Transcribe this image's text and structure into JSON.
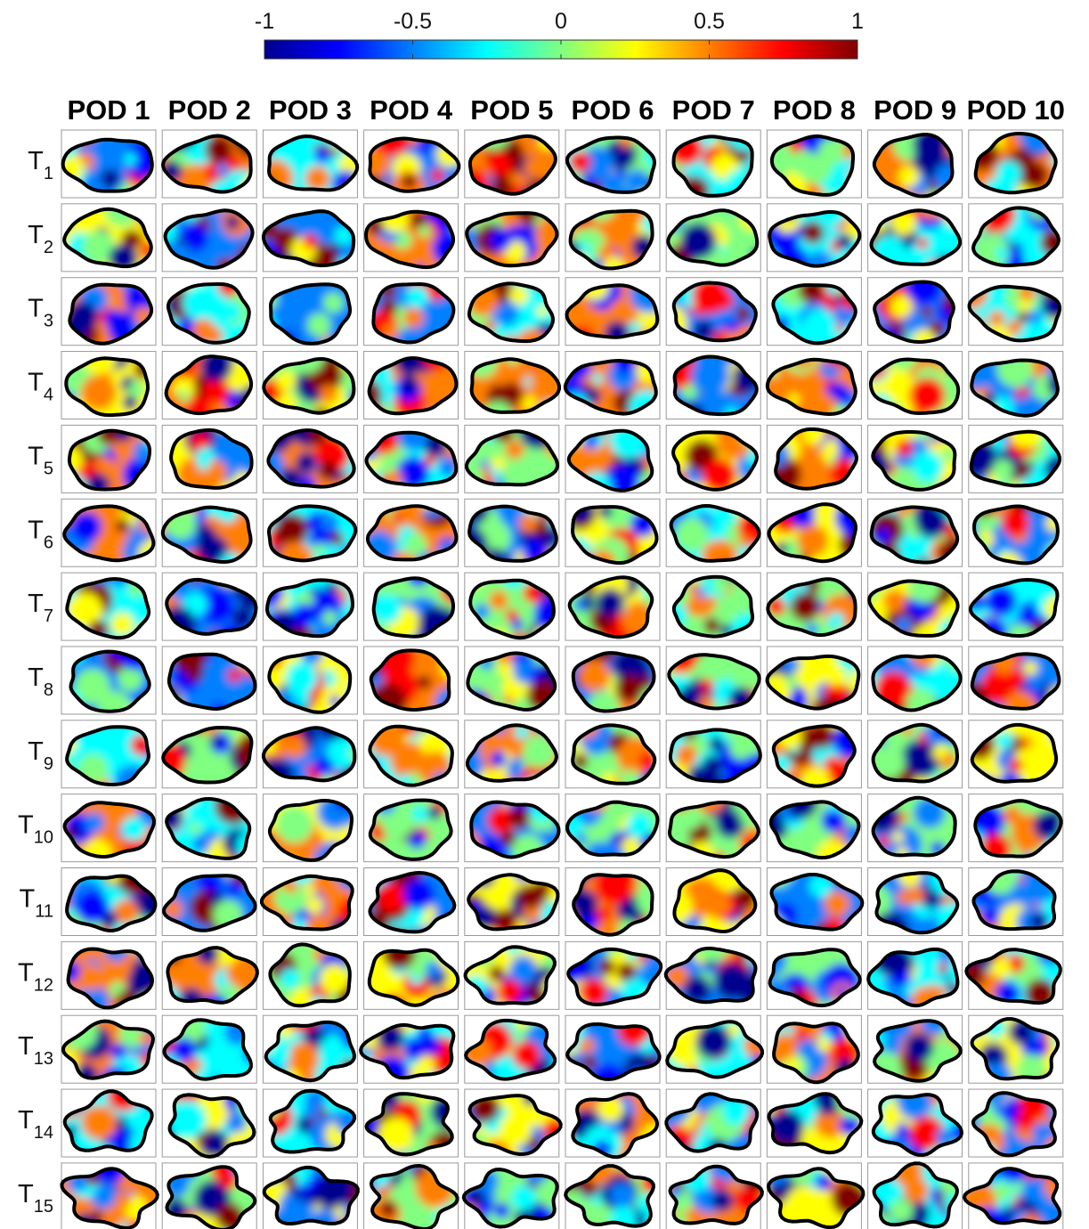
{
  "chart_data": {
    "type": "heatmap-grid",
    "colorbar": {
      "lim": [
        -1,
        1
      ],
      "ticks": [
        -1,
        -0.5,
        0,
        0.5,
        1
      ],
      "colormap": [
        "#00008f",
        "#0000ff",
        "#0080ff",
        "#00ffff",
        "#80ff80",
        "#ffff00",
        "#ff8000",
        "#ff0000",
        "#800000"
      ]
    },
    "columns": [
      "POD 1",
      "POD 2",
      "POD 3",
      "POD 4",
      "POD 5",
      "POD 6",
      "POD 7",
      "POD 8",
      "POD 9",
      "POD 10"
    ],
    "rows": [
      {
        "label": "T",
        "sub": "1"
      },
      {
        "label": "T",
        "sub": "2"
      },
      {
        "label": "T",
        "sub": "3"
      },
      {
        "label": "T",
        "sub": "4"
      },
      {
        "label": "T",
        "sub": "5"
      },
      {
        "label": "T",
        "sub": "6"
      },
      {
        "label": "T",
        "sub": "7"
      },
      {
        "label": "T",
        "sub": "8"
      },
      {
        "label": "T",
        "sub": "9"
      },
      {
        "label": "T",
        "sub": "10"
      },
      {
        "label": "T",
        "sub": "11"
      },
      {
        "label": "T",
        "sub": "12"
      },
      {
        "label": "T",
        "sub": "13"
      },
      {
        "label": "T",
        "sub": "14"
      },
      {
        "label": "T",
        "sub": "15"
      }
    ]
  }
}
